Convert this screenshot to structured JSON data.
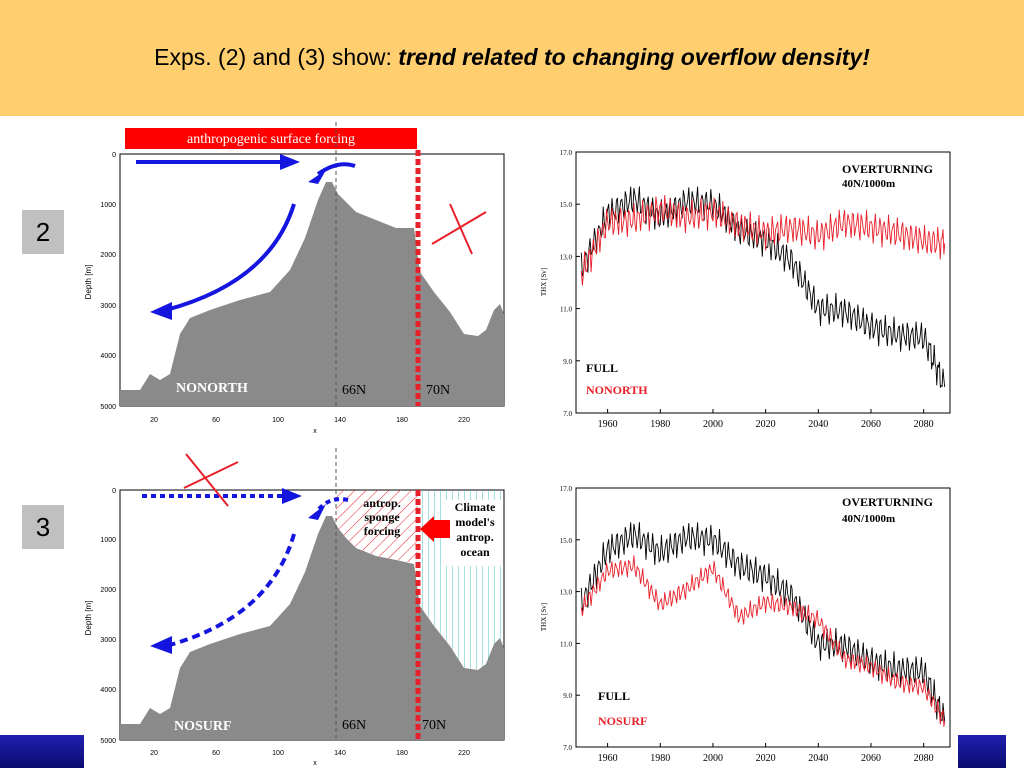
{
  "slide": {
    "title_prefix": "Exps. (2) and (3) show: ",
    "title_emph": "trend related to changing overflow density!"
  },
  "experiments": [
    {
      "number": "2"
    },
    {
      "number": "3"
    }
  ],
  "section_plot_top": {
    "banner": "anthropogenic surface forcing",
    "region_label": "NONORTH",
    "lat_marks": [
      "66N",
      "70N"
    ],
    "y_axis_label": "Depth [m]",
    "y_ticks": [
      "0",
      "1000",
      "2000",
      "3000",
      "4000",
      "5000"
    ],
    "x_ticks": [
      "20",
      "60",
      "100",
      "140",
      "180",
      "220"
    ],
    "x_axis_label": "x"
  },
  "section_plot_bottom": {
    "region_label": "NOSURF",
    "lat_marks": [
      "66N",
      "70N"
    ],
    "sponge_label": [
      "antrop.",
      "sponge",
      "forcing"
    ],
    "climate_label": [
      "Climate",
      "model's",
      "antrop.",
      "ocean"
    ],
    "y_axis_label": "Depth [m]",
    "y_ticks": [
      "0",
      "1000",
      "2000",
      "3000",
      "4000",
      "5000"
    ],
    "x_ticks": [
      "20",
      "60",
      "100",
      "140",
      "180",
      "220"
    ],
    "x_axis_label": "x"
  },
  "chart_data": [
    {
      "type": "line",
      "title": "OVERTURNING",
      "subtitle": "40N/1000m",
      "ylabel": "THX [Sv]",
      "y_ticks": [
        "7.0",
        "9.0",
        "11.0",
        "13.0",
        "15.0",
        "17.0"
      ],
      "x_ticks": [
        "1960",
        "1980",
        "2000",
        "2020",
        "2040",
        "2060",
        "2080"
      ],
      "xlim": [
        1948,
        2090
      ],
      "ylim": [
        7.0,
        17.0
      ],
      "x": [
        1950,
        1960,
        1970,
        1980,
        1990,
        2000,
        2010,
        2020,
        2030,
        2040,
        2050,
        2060,
        2070,
        2080,
        2088
      ],
      "series": [
        {
          "name": "FULL",
          "color": "#000000",
          "values": [
            12.5,
            14.6,
            15.2,
            14.5,
            15.1,
            15.0,
            14.0,
            13.6,
            12.8,
            11.0,
            10.9,
            10.3,
            10.0,
            9.9,
            8.0
          ]
        },
        {
          "name": "NONORTH",
          "color": "#e8202a",
          "values": [
            12.3,
            14.3,
            14.4,
            14.8,
            14.5,
            14.7,
            14.2,
            13.9,
            14.1,
            13.8,
            14.3,
            14.1,
            13.9,
            13.6,
            13.5
          ]
        }
      ]
    },
    {
      "type": "line",
      "title": "OVERTURNING",
      "subtitle": "40N/1000m",
      "ylabel": "THX [Sv]",
      "y_ticks": [
        "7.0",
        "9.0",
        "11.0",
        "13.0",
        "15.0",
        "17.0"
      ],
      "x_ticks": [
        "1960",
        "1980",
        "2000",
        "2020",
        "2040",
        "2060",
        "2080"
      ],
      "xlim": [
        1948,
        2090
      ],
      "ylim": [
        7.0,
        17.0
      ],
      "x": [
        1950,
        1960,
        1970,
        1980,
        1990,
        2000,
        2010,
        2020,
        2030,
        2040,
        2050,
        2060,
        2070,
        2080,
        2088
      ],
      "series": [
        {
          "name": "FULL",
          "color": "#000000",
          "values": [
            12.5,
            14.6,
            15.2,
            14.5,
            15.1,
            15.0,
            14.0,
            13.6,
            12.8,
            11.0,
            10.9,
            10.3,
            10.0,
            9.9,
            8.0
          ]
        },
        {
          "name": "NOSURF",
          "color": "#e8202a",
          "values": [
            12.3,
            13.8,
            14.0,
            12.5,
            13.1,
            13.9,
            12.0,
            12.6,
            12.4,
            11.9,
            10.4,
            10.1,
            9.5,
            9.3,
            8.0
          ]
        }
      ]
    }
  ]
}
